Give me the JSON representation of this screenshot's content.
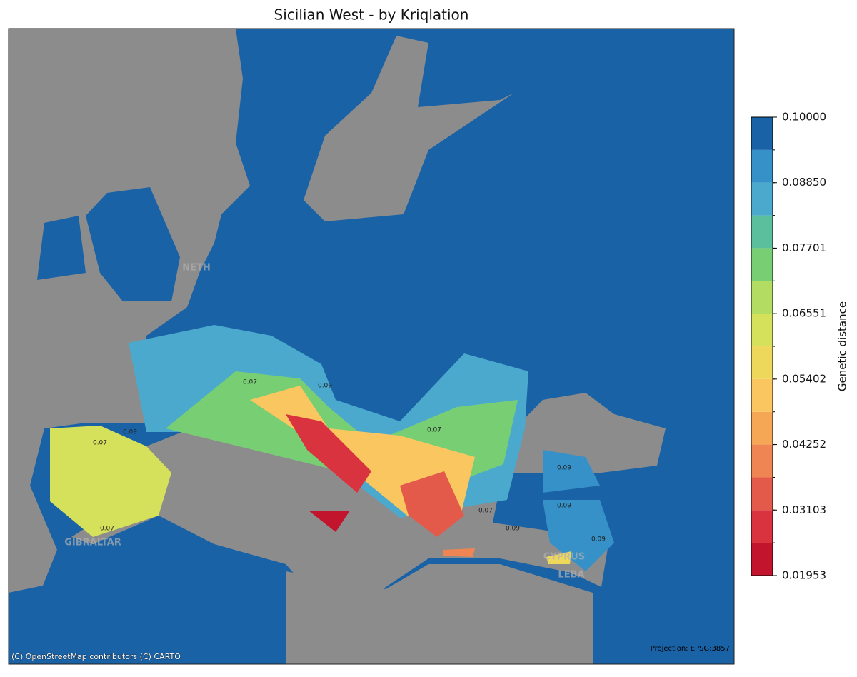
{
  "title": "Sicilian West - by Kriqlation",
  "colorbar": {
    "label": "Genetic distance",
    "lim": [
      0.01953,
      0.1
    ],
    "levels": [
      0.01953,
      0.02528,
      0.03103,
      0.03677,
      0.04252,
      0.04827,
      0.05402,
      0.05976,
      0.06551,
      0.07126,
      0.07701,
      0.08275,
      0.0885,
      0.09425,
      0.1
    ],
    "colors": [
      "#c2152d",
      "#d8333e",
      "#e45a4a",
      "#ef8552",
      "#f5a755",
      "#f9c660",
      "#eed85b",
      "#d5e05b",
      "#b2dc62",
      "#78cf73",
      "#5bbf9e",
      "#4ba9cd",
      "#3591c7",
      "#1a62a6"
    ],
    "ticks": [
      {
        "value": 0.01953,
        "label": "0.01953"
      },
      {
        "value": 0.03103,
        "label": "0.03103"
      },
      {
        "value": 0.04252,
        "label": "0.04252"
      },
      {
        "value": 0.05402,
        "label": "0.05402"
      },
      {
        "value": 0.06551,
        "label": "0.06551"
      },
      {
        "value": 0.07701,
        "label": "0.07701"
      },
      {
        "value": 0.0885,
        "label": "0.08850"
      },
      {
        "value": 0.1,
        "label": "0.10000"
      }
    ]
  },
  "contour_labels": [
    "0.07",
    "0.09",
    "0.07",
    "0.09",
    "0.07",
    "0.09",
    "0.07",
    "0.09",
    "0.07",
    "0.09",
    "0.09"
  ],
  "place_labels": [
    "GIBRALTAR",
    "NETH",
    "CYPRUS",
    "LEBA"
  ],
  "attribution": "(C) OpenStreetMap contributors (C) CARTO",
  "projection": "Projection: EPSG:3857"
}
